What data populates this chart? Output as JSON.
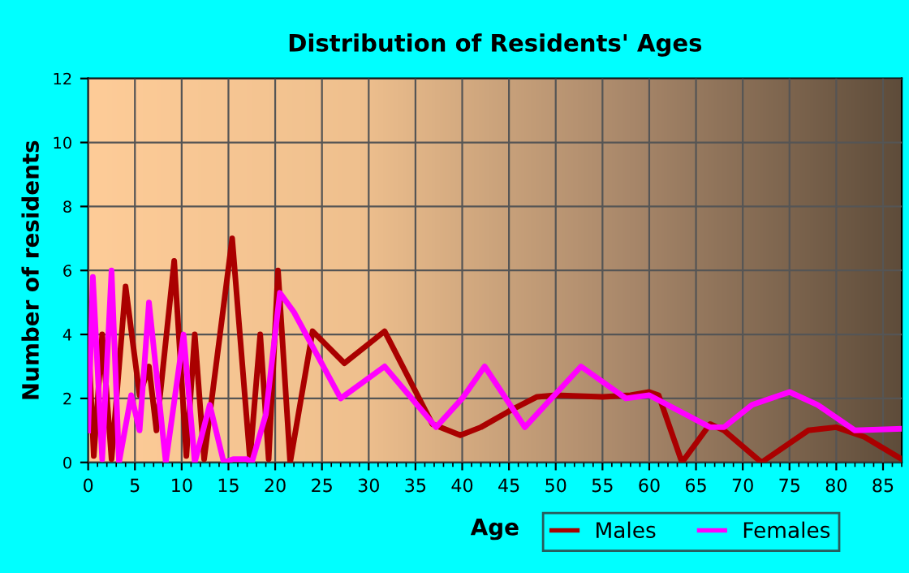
{
  "chart_data": {
    "type": "line",
    "title": "Distribution of Residents' Ages",
    "xlabel": "Age",
    "ylabel": "Number of residents",
    "xlim": [
      0,
      87
    ],
    "xticks": [
      0,
      5,
      10,
      15,
      20,
      25,
      30,
      35,
      40,
      45,
      50,
      55,
      60,
      65,
      70,
      75,
      80,
      85
    ],
    "ylim": [
      0,
      12
    ],
    "yticks": [
      0,
      2,
      4,
      6,
      8,
      10,
      12
    ],
    "grid": true,
    "legend": "bottom right",
    "marker": "none",
    "line_style": "solid",
    "series": [
      {
        "name": "Males",
        "color": "#aa0000",
        "x": [
          0,
          0.6,
          1.5,
          2.5,
          4,
          5.5,
          6.5,
          7.3,
          9.2,
          10.5,
          11.4,
          12.4,
          15.4,
          17.3,
          18.4,
          19.3,
          20.3,
          21.6,
          24,
          27.4,
          31.7,
          36.8,
          39.8,
          42,
          45,
          48,
          50,
          55,
          58,
          60,
          61,
          63.5,
          66.5,
          68,
          72,
          75,
          77,
          80,
          83,
          87
        ],
        "values": [
          4,
          0.2,
          4,
          0.1,
          5.5,
          2.1,
          3,
          1,
          6.3,
          0.2,
          4,
          0.1,
          7,
          0.1,
          4,
          0.1,
          6,
          0,
          4.1,
          3.1,
          4.1,
          1.2,
          0.85,
          1.1,
          1.6,
          2.05,
          2.1,
          2.05,
          2.1,
          2.2,
          2.1,
          0,
          1.2,
          1,
          0,
          0.6,
          1,
          1.1,
          0.8,
          0.1
        ]
      },
      {
        "name": "Females",
        "color": "#ff00ff",
        "x": [
          0,
          0.5,
          1.5,
          2.5,
          3.3,
          4.6,
          5.5,
          6.5,
          8.3,
          10.2,
          11.4,
          13,
          14.5,
          15.5,
          17,
          17.5,
          19,
          20.5,
          22,
          27,
          31.7,
          37.2,
          40,
          42.4,
          46.7,
          52.7,
          57.5,
          60,
          66.5,
          68,
          71,
          75,
          78,
          82,
          87
        ],
        "values": [
          1,
          5.8,
          0.1,
          6,
          0,
          2.1,
          1,
          5,
          0,
          4,
          0,
          1.8,
          0,
          0.1,
          0.1,
          0,
          1.5,
          5.3,
          4.7,
          2,
          3,
          1.1,
          2,
          3,
          1.1,
          3,
          2,
          2.1,
          1.1,
          1.1,
          1.8,
          2.2,
          1.8,
          1,
          1.05
        ]
      }
    ]
  }
}
